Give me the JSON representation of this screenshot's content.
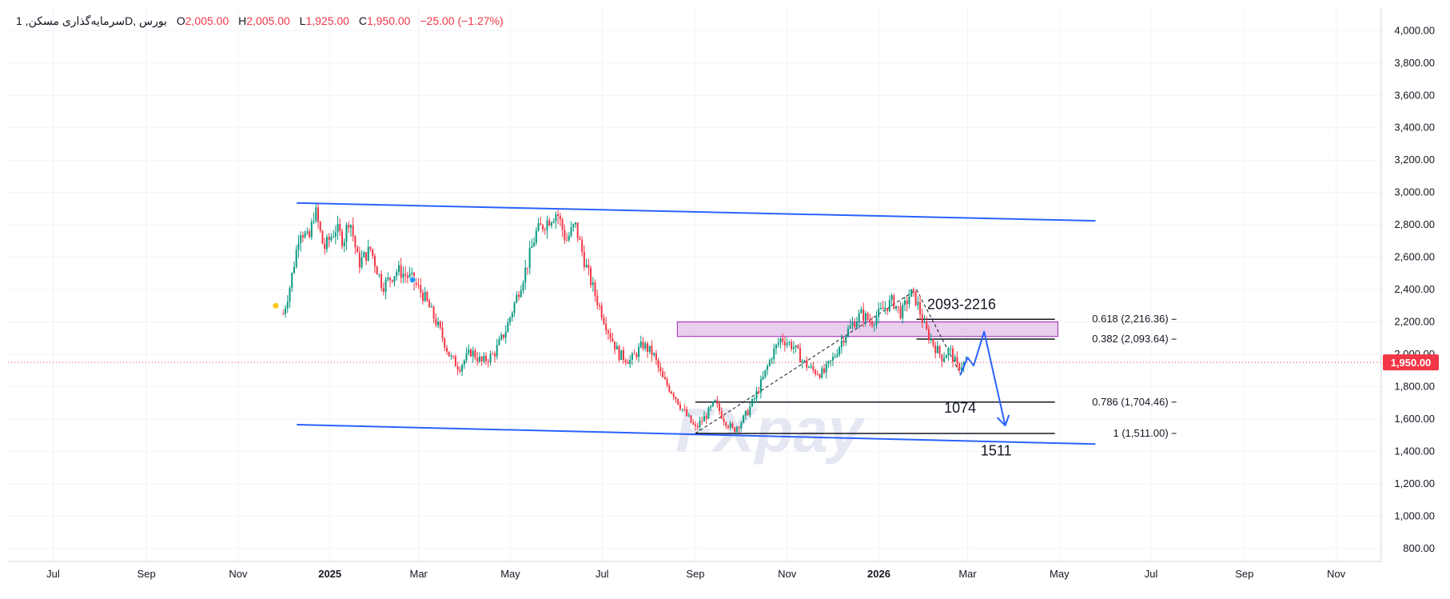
{
  "legend": {
    "symbol": "سرمایه‌گذاری مسکن, 1D, بورس",
    "o_label": "O",
    "o_value": "2,005.00",
    "h_label": "H",
    "h_value": "2,005.00",
    "l_label": "L",
    "l_value": "1,925.00",
    "c_label": "C",
    "c_value": "1,950.00",
    "change": "−25.00 (−1.27%)"
  },
  "watermark": "FXpay",
  "colors": {
    "up": "#089981",
    "down": "#f23645",
    "trendline": "#2962ff",
    "zone_fill": "#e1bee7",
    "zone_border": "#9c27b0",
    "price_badge": "#f23645",
    "grid": "#f0f3fa",
    "axis_text": "#131722"
  },
  "chart_data": {
    "type": "candlestick",
    "title": "",
    "x_axis": {
      "type": "time",
      "range": [
        "2024-06-01",
        "2026-12-01"
      ],
      "ticks": [
        {
          "date": "2024-07-01",
          "label": "Jul",
          "bold": false
        },
        {
          "date": "2024-09-01",
          "label": "Sep",
          "bold": false
        },
        {
          "date": "2024-11-01",
          "label": "Nov",
          "bold": false
        },
        {
          "date": "2025-01-01",
          "label": "2025",
          "bold": true
        },
        {
          "date": "2025-03-01",
          "label": "Mar",
          "bold": false
        },
        {
          "date": "2025-05-01",
          "label": "May",
          "bold": false
        },
        {
          "date": "2025-07-01",
          "label": "Jul",
          "bold": false
        },
        {
          "date": "2025-09-01",
          "label": "Sep",
          "bold": false
        },
        {
          "date": "2025-11-01",
          "label": "Nov",
          "bold": false
        },
        {
          "date": "2026-01-01",
          "label": "2026",
          "bold": true
        },
        {
          "date": "2026-03-01",
          "label": "Mar",
          "bold": false
        },
        {
          "date": "2026-05-01",
          "label": "May",
          "bold": false
        },
        {
          "date": "2026-07-01",
          "label": "Jul",
          "bold": false
        },
        {
          "date": "2026-09-01",
          "label": "Sep",
          "bold": false
        },
        {
          "date": "2026-11-01",
          "label": "Nov",
          "bold": false
        }
      ]
    },
    "y_axis": {
      "range": [
        720,
        4140
      ],
      "ticks": [
        {
          "value": 4000,
          "label": "4,000.00"
        },
        {
          "value": 3800,
          "label": "3,800.00"
        },
        {
          "value": 3600,
          "label": "3,600.00"
        },
        {
          "value": 3400,
          "label": "3,400.00"
        },
        {
          "value": 3200,
          "label": "3,200.00"
        },
        {
          "value": 3000,
          "label": "3,000.00"
        },
        {
          "value": 2800,
          "label": "2,800.00"
        },
        {
          "value": 2600,
          "label": "2,600.00"
        },
        {
          "value": 2400,
          "label": "2,400.00"
        },
        {
          "value": 2200,
          "label": "2,200.00"
        },
        {
          "value": 2000,
          "label": "2,000.00"
        },
        {
          "value": 1800,
          "label": "1,800.00"
        },
        {
          "value": 1600,
          "label": "1,600.00"
        },
        {
          "value": 1400,
          "label": "1,400.00"
        },
        {
          "value": 1200,
          "label": "1,200.00"
        },
        {
          "value": 1000,
          "label": "1,000.00"
        },
        {
          "value": 800,
          "label": "800.00"
        }
      ],
      "last_price": {
        "value": 1950,
        "label": "1,950.00"
      }
    },
    "grid": true,
    "price_path": [
      {
        "date": "2024-12-01",
        "price": 2250
      },
      {
        "date": "2024-12-05",
        "price": 2400
      },
      {
        "date": "2024-12-09",
        "price": 2600
      },
      {
        "date": "2024-12-12",
        "price": 2780
      },
      {
        "date": "2024-12-18",
        "price": 2700
      },
      {
        "date": "2024-12-22",
        "price": 2900
      },
      {
        "date": "2024-12-28",
        "price": 2650
      },
      {
        "date": "2025-01-05",
        "price": 2780
      },
      {
        "date": "2025-01-10",
        "price": 2700
      },
      {
        "date": "2025-01-14",
        "price": 2850
      },
      {
        "date": "2025-01-20",
        "price": 2560
      },
      {
        "date": "2025-01-28",
        "price": 2650
      },
      {
        "date": "2025-02-05",
        "price": 2420
      },
      {
        "date": "2025-02-15",
        "price": 2520
      },
      {
        "date": "2025-02-25",
        "price": 2460
      },
      {
        "date": "2025-03-05",
        "price": 2350
      },
      {
        "date": "2025-03-15",
        "price": 2150
      },
      {
        "date": "2025-03-22",
        "price": 1980
      },
      {
        "date": "2025-03-28",
        "price": 1920
      },
      {
        "date": "2025-04-05",
        "price": 2020
      },
      {
        "date": "2025-04-12",
        "price": 1950
      },
      {
        "date": "2025-04-20",
        "price": 2000
      },
      {
        "date": "2025-04-28",
        "price": 2150
      },
      {
        "date": "2025-05-05",
        "price": 2350
      },
      {
        "date": "2025-05-12",
        "price": 2550
      },
      {
        "date": "2025-05-18",
        "price": 2750
      },
      {
        "date": "2025-05-25",
        "price": 2820
      },
      {
        "date": "2025-06-01",
        "price": 2880
      },
      {
        "date": "2025-06-07",
        "price": 2700
      },
      {
        "date": "2025-06-13",
        "price": 2800
      },
      {
        "date": "2025-06-20",
        "price": 2550
      },
      {
        "date": "2025-06-27",
        "price": 2350
      },
      {
        "date": "2025-07-05",
        "price": 2150
      },
      {
        "date": "2025-07-12",
        "price": 2000
      },
      {
        "date": "2025-07-20",
        "price": 1960
      },
      {
        "date": "2025-07-28",
        "price": 2060
      },
      {
        "date": "2025-08-04",
        "price": 2000
      },
      {
        "date": "2025-08-10",
        "price": 1850
      },
      {
        "date": "2025-08-18",
        "price": 1750
      },
      {
        "date": "2025-08-24",
        "price": 1650
      },
      {
        "date": "2025-09-01",
        "price": 1540
      },
      {
        "date": "2025-09-08",
        "price": 1620
      },
      {
        "date": "2025-09-14",
        "price": 1700
      },
      {
        "date": "2025-09-20",
        "price": 1600
      },
      {
        "date": "2025-09-26",
        "price": 1530
      },
      {
        "date": "2025-10-03",
        "price": 1600
      },
      {
        "date": "2025-10-10",
        "price": 1720
      },
      {
        "date": "2025-10-16",
        "price": 1850
      },
      {
        "date": "2025-10-22",
        "price": 2000
      },
      {
        "date": "2025-10-28",
        "price": 2100
      },
      {
        "date": "2025-11-05",
        "price": 2050
      },
      {
        "date": "2025-11-12",
        "price": 1950
      },
      {
        "date": "2025-11-18",
        "price": 1900
      },
      {
        "date": "2025-11-25",
        "price": 1880
      },
      {
        "date": "2025-12-02",
        "price": 1980
      },
      {
        "date": "2025-12-08",
        "price": 2100
      },
      {
        "date": "2025-12-14",
        "price": 2180
      },
      {
        "date": "2025-12-20",
        "price": 2250
      },
      {
        "date": "2025-12-27",
        "price": 2200
      },
      {
        "date": "2026-01-04",
        "price": 2280
      },
      {
        "date": "2026-01-10",
        "price": 2330
      },
      {
        "date": "2026-01-16",
        "price": 2250
      },
      {
        "date": "2026-01-22",
        "price": 2380
      },
      {
        "date": "2026-01-26",
        "price": 2330
      },
      {
        "date": "2026-02-01",
        "price": 2150
      },
      {
        "date": "2026-02-07",
        "price": 2050
      },
      {
        "date": "2026-02-12",
        "price": 1980
      },
      {
        "date": "2026-02-17",
        "price": 2030
      },
      {
        "date": "2026-02-22",
        "price": 1920
      },
      {
        "date": "2026-02-28",
        "price": 1950
      }
    ],
    "trendlines": [
      {
        "from": {
          "date": "2024-12-10",
          "price": 2935
        },
        "to": {
          "date": "2026-05-25",
          "price": 2825
        }
      },
      {
        "from": {
          "date": "2024-12-10",
          "price": 1565
        },
        "to": {
          "date": "2026-05-25",
          "price": 1445
        }
      }
    ],
    "zone": {
      "from_date": "2025-08-20",
      "to_date": "2026-04-30",
      "low": 2110,
      "high": 2200
    },
    "fib_levels": [
      {
        "ratio": "0.618",
        "label": "0.618 (2,216.36)",
        "price": 2216.36,
        "from_date": "2026-01-26"
      },
      {
        "ratio": "0.382",
        "label": "0.382 (2,093.64)",
        "price": 2093.64,
        "from_date": "2026-01-26"
      },
      {
        "ratio": "0.786",
        "label": "0.786 (1,704.46)",
        "price": 1704.46,
        "from_date": "2025-09-01"
      },
      {
        "ratio": "1",
        "label": "1 (1,511.00)",
        "price": 1511.0,
        "from_date": "2025-09-01"
      }
    ],
    "fib_end_date": "2026-04-28",
    "fib_swing": [
      {
        "date": "2025-09-01",
        "price": 1511
      },
      {
        "date": "2026-01-26",
        "price": 2400
      },
      {
        "date": "2026-02-23",
        "price": 1900
      }
    ],
    "projection_path": [
      {
        "date": "2026-02-24",
        "price": 1870
      },
      {
        "date": "2026-03-01",
        "price": 1980
      },
      {
        "date": "2026-03-05",
        "price": 1930
      },
      {
        "date": "2026-03-12",
        "price": 2140
      },
      {
        "date": "2026-03-26",
        "price": 1560
      }
    ],
    "annotations": [
      {
        "text": "2093-2216",
        "date": "2026-02-25",
        "price": 2280
      },
      {
        "text": "1074",
        "date": "2026-02-24",
        "price": 1640
      },
      {
        "text": "1511",
        "date": "2026-03-20",
        "price": 1375
      }
    ],
    "markers": [
      {
        "date": "2024-11-26",
        "price": 2300,
        "color": "#f9c80e"
      },
      {
        "date": "2025-02-25",
        "price": 2460,
        "color": "#2196f3"
      }
    ]
  }
}
